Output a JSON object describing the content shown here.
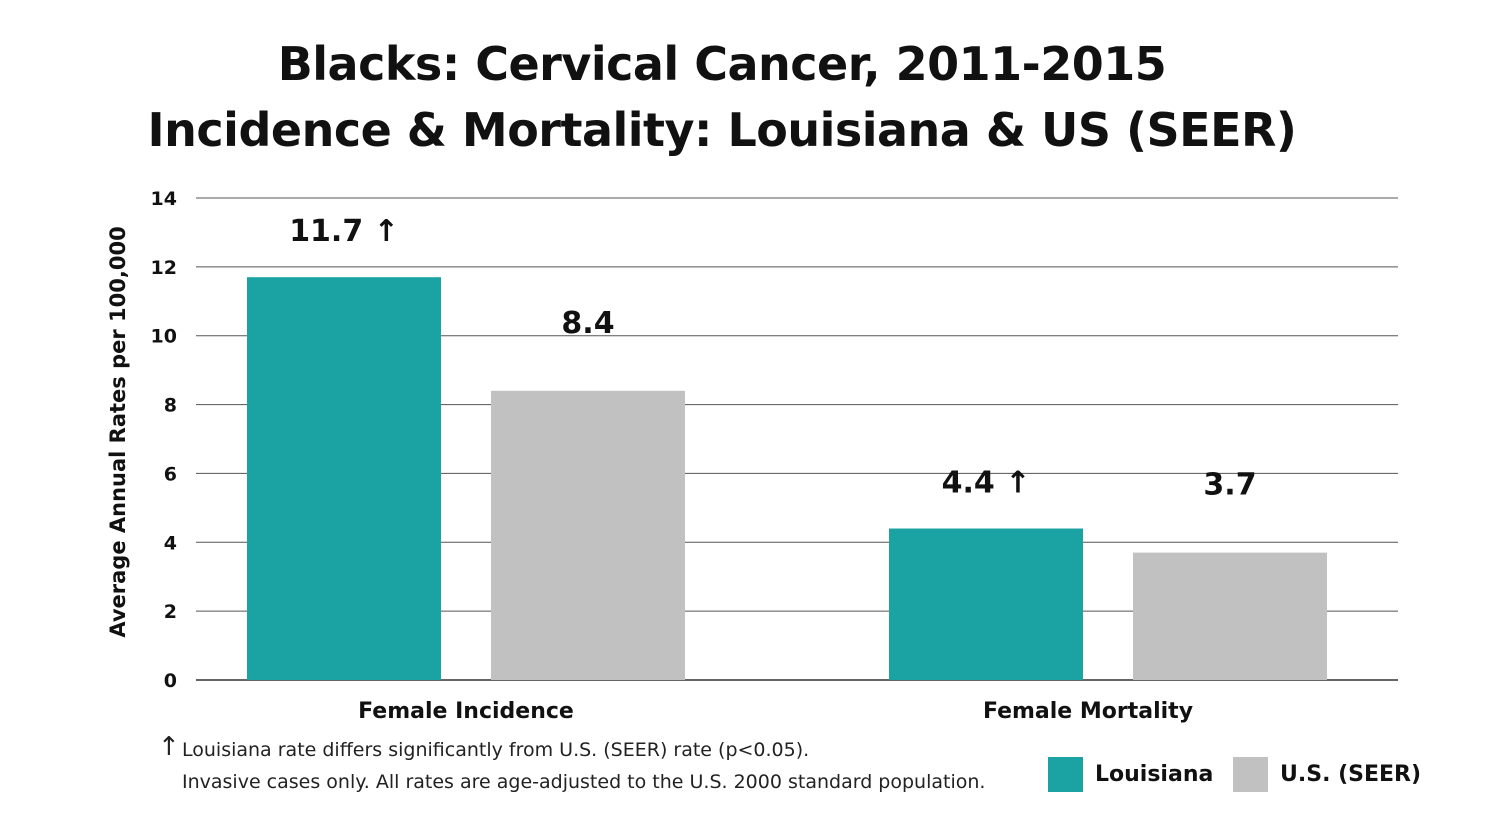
{
  "chart_data": {
    "type": "bar",
    "title_line1": "Blacks: Cervical Cancer, 2011-2015",
    "title_line2": "Incidence & Mortality: Louisiana & US (SEER)",
    "xlabel": "",
    "ylabel": "Average Annual Rates per 100,000",
    "ylim": [
      0,
      14
    ],
    "yticks": [
      0,
      2,
      4,
      6,
      8,
      10,
      12,
      14
    ],
    "grid": true,
    "categories": [
      "Female Incidence",
      "Female Mortality"
    ],
    "series": [
      {
        "name": "Louisiana",
        "color": "#1ba3a3",
        "values": [
          11.7,
          4.4
        ],
        "labels": [
          "11.7",
          "4.4"
        ],
        "significant": [
          true,
          true
        ]
      },
      {
        "name": "U.S. (SEER)",
        "color": "#c1c1c1",
        "values": [
          8.4,
          3.7
        ],
        "labels": [
          "8.4",
          "3.7"
        ],
        "significant": [
          false,
          false
        ]
      }
    ],
    "significance_marker": "↑",
    "legend": [
      "Louisiana",
      "U.S. (SEER)"
    ],
    "legend_position": "bottom-right"
  },
  "notes": {
    "arrow": "↑",
    "line1": "Louisiana rate differs significantly from U.S. (SEER) rate (p<0.05).",
    "line2": "Invasive cases only. All rates are age-adjusted to the U.S. 2000 standard population."
  }
}
